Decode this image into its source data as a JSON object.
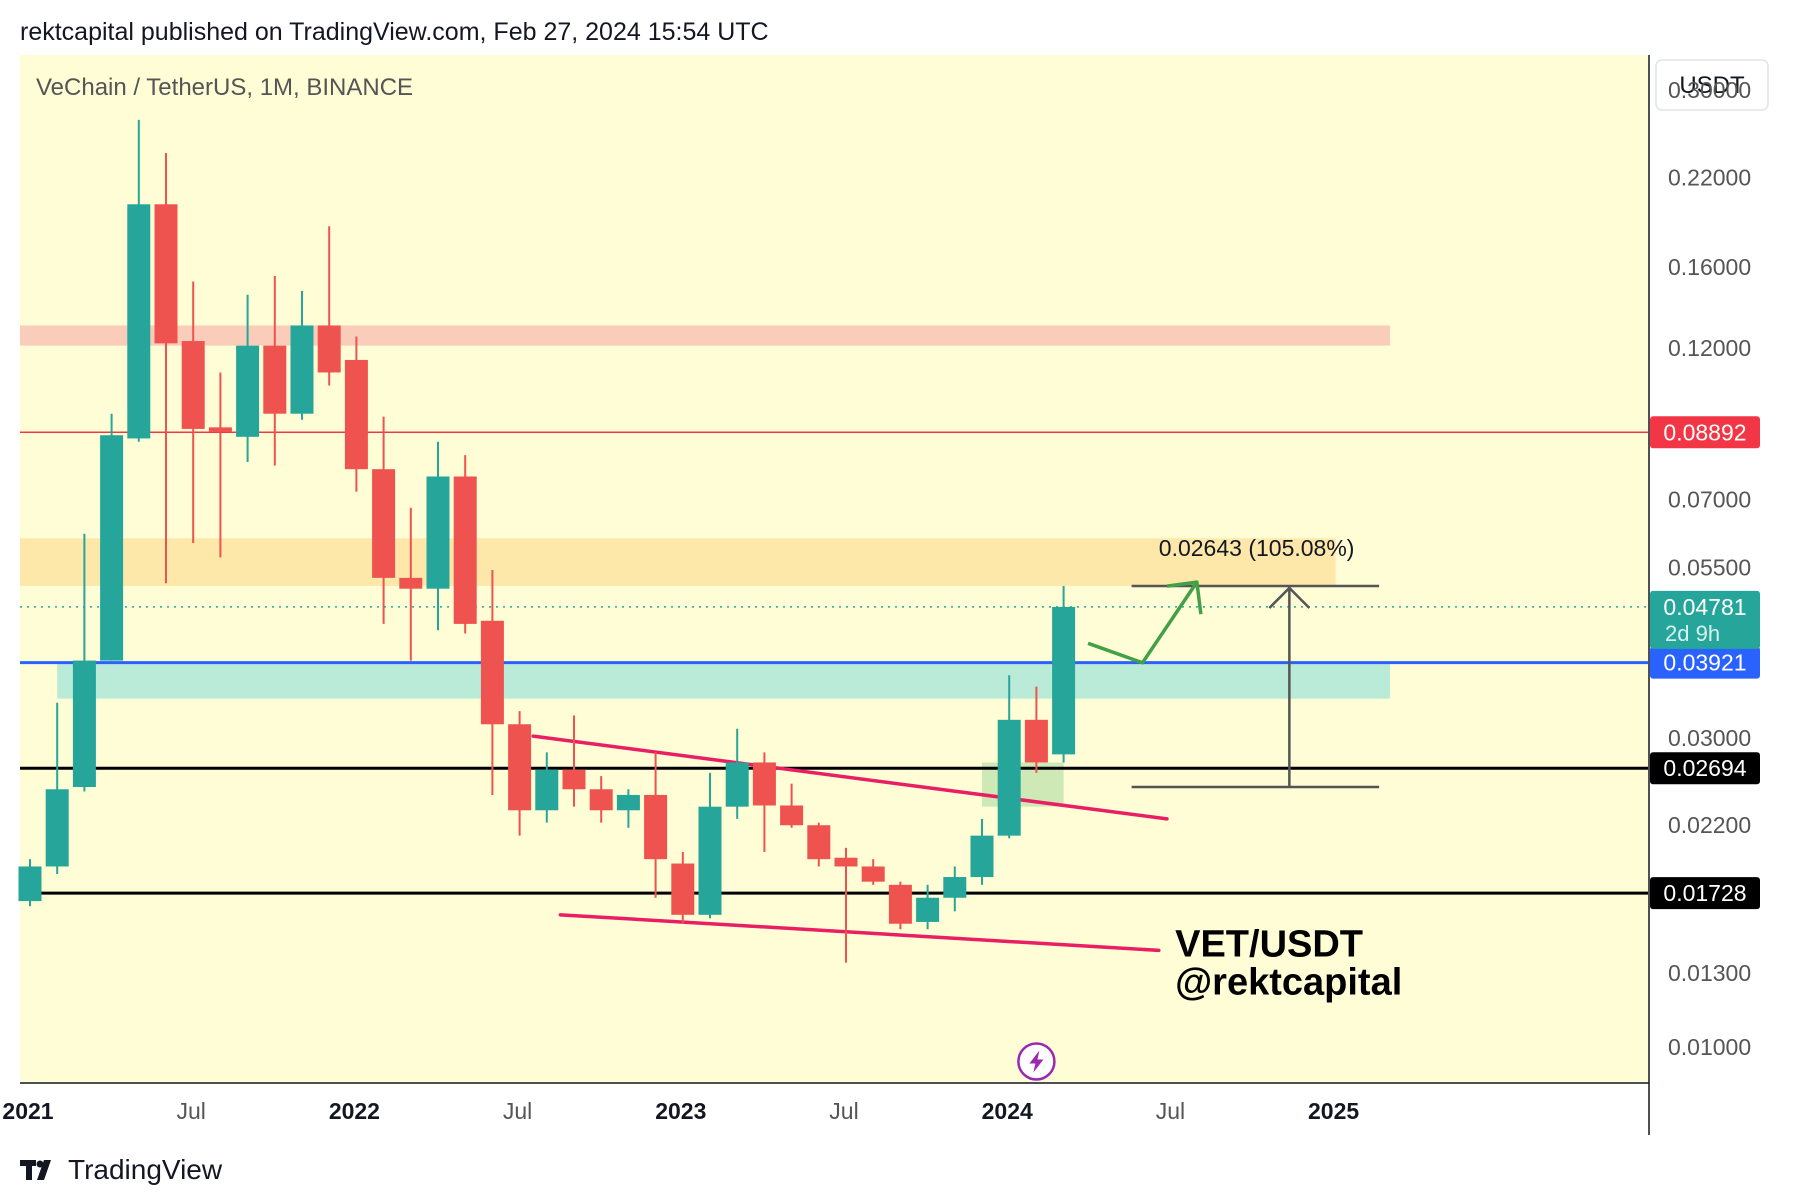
{
  "header": {
    "publish_line": "rektcapital published on TradingView.com, Feb 27, 2024 15:54 UTC"
  },
  "footer": {
    "brand": "TradingView"
  },
  "colors": {
    "background": "#fffdd6",
    "bull": "#26a69a",
    "bear": "#ef5350",
    "trendline": "#e91e63",
    "arrow": "#43a047",
    "resistance_line": "#f23645",
    "support_line": "#2962ff"
  },
  "chart_data": {
    "type": "candlestick",
    "title": "VeChain / TetherUS, 1M, BINANCE",
    "currency_button": "USDT",
    "y_scale": "log",
    "ylim": [
      0.0088,
      0.34
    ],
    "y_ticks": [
      "0.30000",
      "0.22000",
      "0.16000",
      "0.12000",
      "0.07000",
      "0.05500",
      "0.03000",
      "0.02200",
      "0.01300",
      "0.01000"
    ],
    "x_ticks": [
      {
        "label": "2021",
        "bold": true,
        "index": 0
      },
      {
        "label": "Jul",
        "bold": false,
        "index": 6
      },
      {
        "label": "2022",
        "bold": true,
        "index": 12
      },
      {
        "label": "Jul",
        "bold": false,
        "index": 18
      },
      {
        "label": "2023",
        "bold": true,
        "index": 24
      },
      {
        "label": "Jul",
        "bold": false,
        "index": 30
      },
      {
        "label": "2024",
        "bold": true,
        "index": 36
      },
      {
        "label": "Jul",
        "bold": false,
        "index": 42
      },
      {
        "label": "2025",
        "bold": true,
        "index": 48
      }
    ],
    "candles": [
      {
        "date": "2021-01",
        "o": 0.0168,
        "h": 0.0195,
        "l": 0.0165,
        "c": 0.019
      },
      {
        "date": "2021-02",
        "o": 0.019,
        "h": 0.034,
        "l": 0.0185,
        "c": 0.025
      },
      {
        "date": "2021-03",
        "o": 0.0252,
        "h": 0.062,
        "l": 0.0248,
        "c": 0.0395
      },
      {
        "date": "2021-04",
        "o": 0.0395,
        "h": 0.095,
        "l": 0.0395,
        "c": 0.088
      },
      {
        "date": "2021-05",
        "o": 0.087,
        "h": 0.27,
        "l": 0.086,
        "c": 0.2
      },
      {
        "date": "2021-06",
        "o": 0.2,
        "h": 0.24,
        "l": 0.052,
        "c": 0.122
      },
      {
        "date": "2021-07",
        "o": 0.123,
        "h": 0.152,
        "l": 0.06,
        "c": 0.09
      },
      {
        "date": "2021-08",
        "o": 0.0905,
        "h": 0.11,
        "l": 0.057,
        "c": 0.089
      },
      {
        "date": "2021-09",
        "o": 0.0875,
        "h": 0.145,
        "l": 0.08,
        "c": 0.121
      },
      {
        "date": "2021-10",
        "o": 0.121,
        "h": 0.155,
        "l": 0.079,
        "c": 0.095
      },
      {
        "date": "2021-11",
        "o": 0.095,
        "h": 0.147,
        "l": 0.093,
        "c": 0.13
      },
      {
        "date": "2021-12",
        "o": 0.13,
        "h": 0.185,
        "l": 0.105,
        "c": 0.11
      },
      {
        "date": "2022-01",
        "o": 0.115,
        "h": 0.125,
        "l": 0.072,
        "c": 0.078
      },
      {
        "date": "2022-02",
        "o": 0.078,
        "h": 0.094,
        "l": 0.045,
        "c": 0.053
      },
      {
        "date": "2022-03",
        "o": 0.053,
        "h": 0.068,
        "l": 0.0395,
        "c": 0.051
      },
      {
        "date": "2022-04",
        "o": 0.051,
        "h": 0.086,
        "l": 0.044,
        "c": 0.076
      },
      {
        "date": "2022-05",
        "o": 0.076,
        "h": 0.082,
        "l": 0.0435,
        "c": 0.045
      },
      {
        "date": "2022-06",
        "o": 0.0455,
        "h": 0.0545,
        "l": 0.0245,
        "c": 0.0315
      },
      {
        "date": "2022-07",
        "o": 0.0315,
        "h": 0.033,
        "l": 0.0212,
        "c": 0.0232
      },
      {
        "date": "2022-08",
        "o": 0.0232,
        "h": 0.0285,
        "l": 0.0222,
        "c": 0.0268
      },
      {
        "date": "2022-09",
        "o": 0.0268,
        "h": 0.0325,
        "l": 0.0235,
        "c": 0.025
      },
      {
        "date": "2022-10",
        "o": 0.025,
        "h": 0.0262,
        "l": 0.0222,
        "c": 0.0232
      },
      {
        "date": "2022-11",
        "o": 0.0232,
        "h": 0.025,
        "l": 0.0218,
        "c": 0.0245
      },
      {
        "date": "2022-12",
        "o": 0.0245,
        "h": 0.0285,
        "l": 0.017,
        "c": 0.0195
      },
      {
        "date": "2023-01",
        "o": 0.0192,
        "h": 0.02,
        "l": 0.0155,
        "c": 0.016
      },
      {
        "date": "2023-02",
        "o": 0.016,
        "h": 0.0265,
        "l": 0.0158,
        "c": 0.0235
      },
      {
        "date": "2023-03",
        "o": 0.0235,
        "h": 0.031,
        "l": 0.0225,
        "c": 0.0275
      },
      {
        "date": "2023-04",
        "o": 0.0275,
        "h": 0.0285,
        "l": 0.02,
        "c": 0.0236
      },
      {
        "date": "2023-05",
        "o": 0.0236,
        "h": 0.0255,
        "l": 0.0218,
        "c": 0.022
      },
      {
        "date": "2023-06",
        "o": 0.022,
        "h": 0.0222,
        "l": 0.019,
        "c": 0.0195
      },
      {
        "date": "2023-07",
        "o": 0.0196,
        "h": 0.0203,
        "l": 0.0135,
        "c": 0.019
      },
      {
        "date": "2023-08",
        "o": 0.019,
        "h": 0.0195,
        "l": 0.0178,
        "c": 0.018
      },
      {
        "date": "2023-09",
        "o": 0.0178,
        "h": 0.018,
        "l": 0.0152,
        "c": 0.0155
      },
      {
        "date": "2023-10",
        "o": 0.0156,
        "h": 0.0178,
        "l": 0.0152,
        "c": 0.017
      },
      {
        "date": "2023-11",
        "o": 0.017,
        "h": 0.019,
        "l": 0.0162,
        "c": 0.0183
      },
      {
        "date": "2023-12",
        "o": 0.0183,
        "h": 0.0225,
        "l": 0.0178,
        "c": 0.0212
      },
      {
        "date": "2024-01",
        "o": 0.0212,
        "h": 0.0375,
        "l": 0.021,
        "c": 0.032
      },
      {
        "date": "2024-02",
        "o": 0.032,
        "h": 0.036,
        "l": 0.0265,
        "c": 0.0275
      },
      {
        "date": "2024-03",
        "o": 0.0283,
        "h": 0.0515,
        "l": 0.0275,
        "c": 0.0478
      }
    ],
    "zones": [
      {
        "name": "upper-resistance-zone",
        "low": 0.121,
        "high": 0.13,
        "color": "#f8c4b4",
        "to_index": 50
      },
      {
        "name": "mid-resistance-zone",
        "low": 0.0515,
        "high": 0.061,
        "color": "#fde4a2",
        "to_index": 48
      },
      {
        "name": "support-zone",
        "low": 0.0345,
        "high": 0.0392,
        "color": "#aee8d8",
        "from_index": 1,
        "to_index": 50
      },
      {
        "name": "retest-zone",
        "low": 0.0235,
        "high": 0.0275,
        "color": "#c5e5b0",
        "from_index": 35,
        "to_index": 38
      }
    ],
    "levels": [
      {
        "name": "resistance-line",
        "value": 0.08892,
        "label": "0.08892",
        "color": "#f23645",
        "label_bg": "#f23645",
        "width": 1.5
      },
      {
        "name": "support-line",
        "value": 0.03921,
        "label": "0.03921",
        "color": "#2962ff",
        "label_bg": "#2962ff",
        "width": 3
      },
      {
        "name": "level-line-mid",
        "value": 0.02694,
        "label": "0.02694",
        "color": "#000000",
        "label_bg": "#000000",
        "width": 3
      },
      {
        "name": "level-line-low",
        "value": 0.01728,
        "label": "0.01728",
        "color": "#000000",
        "label_bg": "#000000",
        "width": 3
      }
    ],
    "current_price": {
      "value": 0.04781,
      "label": "0.04781",
      "countdown": "2d 9h",
      "color": "#26a69a"
    },
    "trendlines": [
      {
        "name": "upper-trendline",
        "x1": 18.5,
        "y1": 0.0302,
        "x2": 41.8,
        "y2": 0.0225
      },
      {
        "name": "lower-trendline",
        "x1": 19.5,
        "y1": 0.016,
        "x2": 41.5,
        "y2": 0.0141
      }
    ],
    "measure": {
      "label": "0.02643 (105.08%)",
      "from": 0.0252,
      "to": 0.0515,
      "x_index": 46.3,
      "x_left": 40.5,
      "x_right": 49.6
    },
    "arrow_path": [
      {
        "i": 38.9,
        "v": 0.042
      },
      {
        "i": 40.9,
        "v": 0.0392
      },
      {
        "i": 42.9,
        "v": 0.0522
      }
    ],
    "annotation": {
      "line1": "VET/USDT",
      "line2": "@rektcapital",
      "index": 42.1,
      "value": 0.0138
    },
    "lightning_marker": {
      "index": 37.0,
      "value": 0.0095
    }
  }
}
